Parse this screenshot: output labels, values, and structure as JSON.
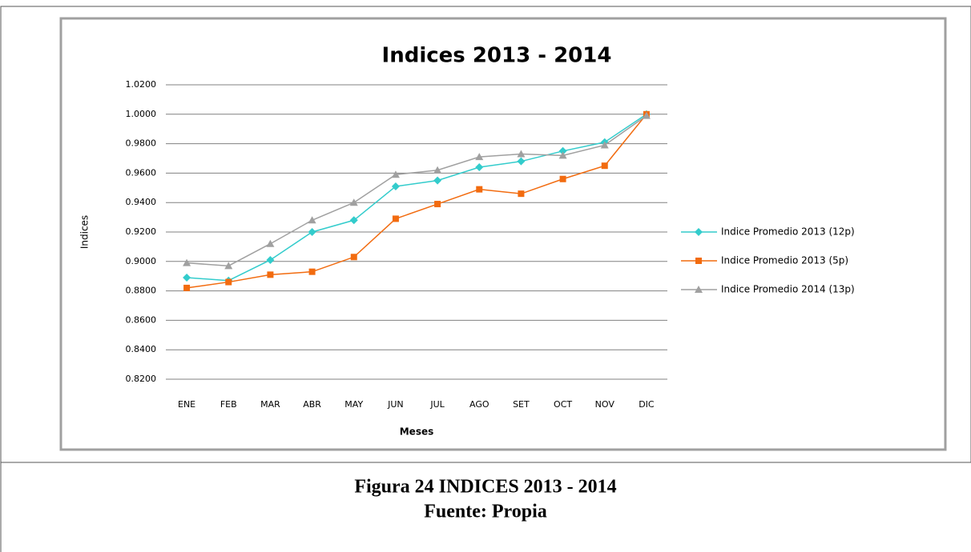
{
  "chart_data": {
    "type": "line",
    "title": "Indices 2013 - 2014",
    "x_label": "Meses",
    "y_label": "Indices",
    "categories": [
      "ENE",
      "FEB",
      "MAR",
      "ABR",
      "MAY",
      "JUN",
      "JUL",
      "AGO",
      "SET",
      "OCT",
      "NOV",
      "DIC"
    ],
    "series": [
      {
        "name": "Indice Promedio 2013 (12p)",
        "color": "#33cccc",
        "marker": "diamond",
        "values": [
          0.889,
          0.887,
          0.901,
          0.92,
          0.928,
          0.951,
          0.955,
          0.964,
          0.968,
          0.975,
          0.981,
          1.0
        ]
      },
      {
        "name": "Indice Promedio 2013 (5p)",
        "color": "#f26b0f",
        "marker": "square",
        "values": [
          0.882,
          0.886,
          0.891,
          0.893,
          0.903,
          0.929,
          0.939,
          0.949,
          0.946,
          0.956,
          0.965,
          1.0
        ]
      },
      {
        "name": "Indice Promedio 2014 (13p)",
        "color": "#a0a0a0",
        "marker": "triangle",
        "values": [
          0.899,
          0.897,
          0.912,
          0.928,
          0.94,
          0.959,
          0.962,
          0.971,
          0.973,
          0.972,
          0.979,
          0.999
        ]
      }
    ],
    "ylim": [
      0.82,
      1.02
    ],
    "yticks": [
      {
        "value": 0.82,
        "label": "0.8200"
      },
      {
        "value": 0.84,
        "label": "0.8400"
      },
      {
        "value": 0.86,
        "label": "0.8600"
      },
      {
        "value": 0.88,
        "label": "0.8800"
      },
      {
        "value": 0.9,
        "label": "0.9000"
      },
      {
        "value": 0.92,
        "label": "0.9200"
      },
      {
        "value": 0.94,
        "label": "0.9400"
      },
      {
        "value": 0.96,
        "label": "0.9600"
      },
      {
        "value": 0.98,
        "label": "0.9800"
      },
      {
        "value": 1.0,
        "label": "1.0000"
      },
      {
        "value": 1.02,
        "label": "1.0200"
      }
    ],
    "grid": true,
    "legend": "right"
  },
  "caption": {
    "figure": "Figura 24 INDICES 2013 - 2014",
    "source": "Fuente: Propia"
  }
}
